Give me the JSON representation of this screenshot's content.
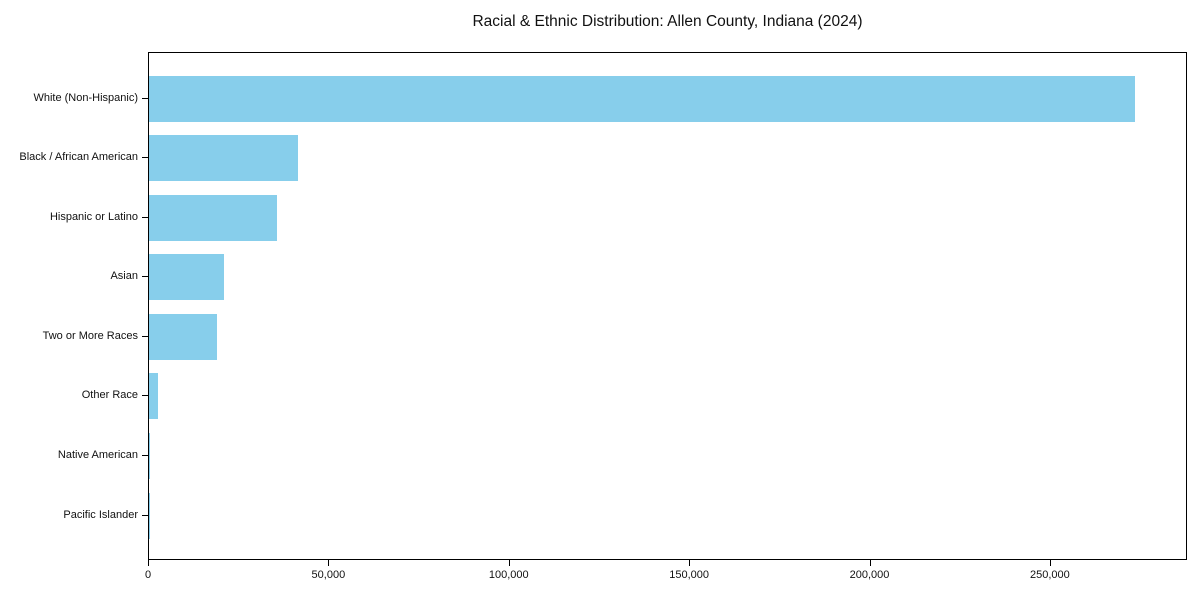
{
  "figure": {
    "background": "#ffffff"
  },
  "chart_data": {
    "type": "bar",
    "orientation": "horizontal",
    "title": "Racial & Ethnic Distribution: Allen County, Indiana (2024)",
    "categories": [
      "White (Non-Hispanic)",
      "Black / African American",
      "Hispanic or Latino",
      "Asian",
      "Two or More Races",
      "Other Race",
      "Native American",
      "Pacific Islander"
    ],
    "values": [
      273800,
      41300,
      35500,
      20900,
      19000,
      2400,
      250,
      100
    ],
    "bar_color": "#87CEEB",
    "axis_color": "#000000",
    "text_color": "#111111",
    "xlabel": "",
    "ylabel": "",
    "xlim": [
      0,
      288000
    ],
    "xticks": [
      0,
      50000,
      100000,
      150000,
      200000,
      250000
    ],
    "xtick_labels": [
      "0",
      "50,000",
      "100,000",
      "150,000",
      "200,000",
      "250,000"
    ],
    "grid": false,
    "legend": null
  }
}
